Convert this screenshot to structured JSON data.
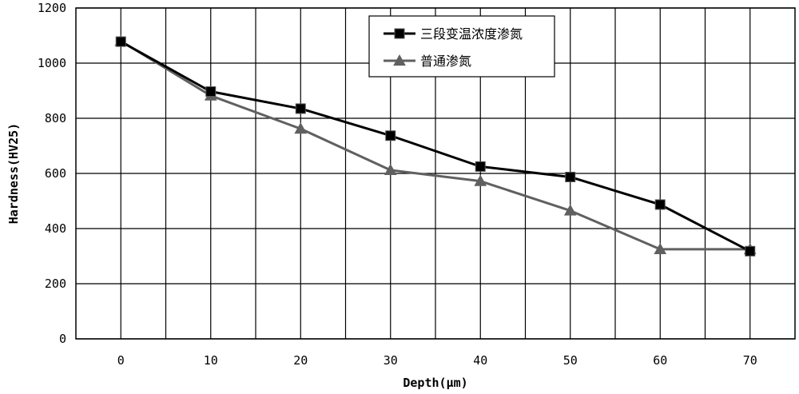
{
  "chart_data": {
    "type": "line",
    "title": "",
    "xlabel": "Depth(μm)",
    "ylabel": "Hardness(HV25)",
    "x": [
      0,
      10,
      20,
      30,
      40,
      50,
      60,
      70
    ],
    "xlim": [
      -5,
      75
    ],
    "ylim": [
      0,
      1200
    ],
    "x_ticks": [
      "0",
      "10",
      "20",
      "30",
      "40",
      "50",
      "60",
      "70"
    ],
    "y_ticks": [
      "0",
      "200",
      "400",
      "600",
      "800",
      "1000",
      "1200"
    ],
    "grid": true,
    "legend_position": "top-center",
    "series": [
      {
        "name": "三段变温浓度渗氮",
        "marker": "square",
        "color": "#000000",
        "values": [
          1078,
          897,
          835,
          737,
          625,
          587,
          487,
          318
        ]
      },
      {
        "name": "普通渗氮",
        "marker": "triangle",
        "color": "#606060",
        "values": [
          1080,
          882,
          762,
          612,
          572,
          465,
          325,
          325
        ]
      }
    ]
  }
}
